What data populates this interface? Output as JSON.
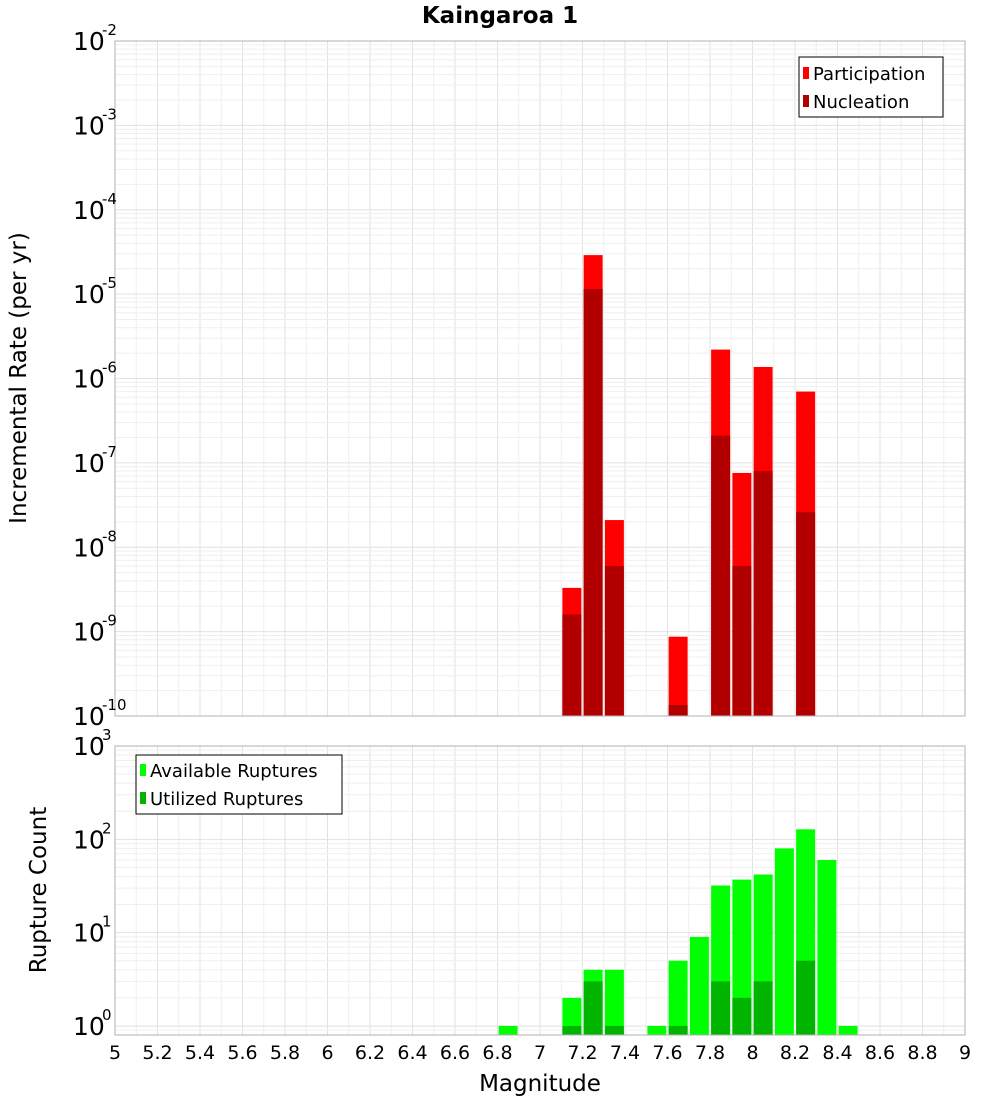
{
  "chart_data": [
    {
      "type": "bar",
      "title": "Kaingaroa 1",
      "xlabel": "",
      "ylabel": "Incremental Rate (per yr)",
      "yscale": "log",
      "ylim": [
        1e-10,
        0.01
      ],
      "xlim": [
        5,
        9
      ],
      "grid": true,
      "legend_placement": "top-right",
      "y_ticks": [
        {
          "base": "10",
          "exp": "-10",
          "value": 1e-10
        },
        {
          "base": "10",
          "exp": "-9",
          "value": 1e-09
        },
        {
          "base": "10",
          "exp": "-8",
          "value": 1e-08
        },
        {
          "base": "10",
          "exp": "-7",
          "value": 1e-07
        },
        {
          "base": "10",
          "exp": "-6",
          "value": 1e-06
        },
        {
          "base": "10",
          "exp": "-5",
          "value": 1e-05
        },
        {
          "base": "10",
          "exp": "-4",
          "value": 0.0001
        },
        {
          "base": "10",
          "exp": "-3",
          "value": 0.001
        },
        {
          "base": "10",
          "exp": "-2",
          "value": 0.01
        }
      ],
      "x": [
        7.15,
        7.25,
        7.35,
        7.65,
        7.85,
        7.95,
        8.05,
        8.25
      ],
      "series": [
        {
          "name": "Participation",
          "color": "#ff0000",
          "values": [
            3.3e-09,
            2.9e-05,
            2.1e-08,
            8.7e-10,
            2.2e-06,
            7.6e-08,
            1.37e-06,
            7e-07
          ]
        },
        {
          "name": "Nucleation",
          "color": "#b20000",
          "values": [
            1.6e-09,
            1.15e-05,
            6e-09,
            1.35e-10,
            2.1e-07,
            6e-09,
            8e-08,
            2.6e-08
          ]
        }
      ]
    },
    {
      "type": "bar",
      "title": "",
      "xlabel": "Magnitude",
      "ylabel": "Rupture Count",
      "yscale": "log",
      "ylim": [
        0.8,
        1000
      ],
      "xlim": [
        5,
        9
      ],
      "grid": true,
      "legend_placement": "top-left",
      "x_ticks": [
        "5",
        "5.2",
        "5.4",
        "5.6",
        "5.8",
        "6",
        "6.2",
        "6.4",
        "6.6",
        "6.8",
        "7",
        "7.2",
        "7.4",
        "7.6",
        "7.8",
        "8",
        "8.2",
        "8.4",
        "8.6",
        "8.8",
        "9"
      ],
      "y_ticks": [
        {
          "base": "10",
          "exp": "0",
          "value": 1
        },
        {
          "base": "10",
          "exp": "1",
          "value": 10
        },
        {
          "base": "10",
          "exp": "2",
          "value": 100
        },
        {
          "base": "10",
          "exp": "3",
          "value": 1000
        }
      ],
      "series": [
        {
          "name": "Available Ruptures",
          "color": "#00ff00",
          "x": [
            6.85,
            7.15,
            7.25,
            7.35,
            7.55,
            7.65,
            7.75,
            7.85,
            7.95,
            8.05,
            8.15,
            8.25,
            8.35,
            8.45
          ],
          "values": [
            1,
            2,
            4,
            4,
            1,
            5,
            9,
            32,
            37,
            42,
            80,
            128,
            60,
            1
          ]
        },
        {
          "name": "Utilized Ruptures",
          "color": "#00b400",
          "x": [
            7.15,
            7.25,
            7.35,
            7.65,
            7.85,
            7.95,
            8.05,
            8.25
          ],
          "values": [
            1,
            3,
            1,
            1,
            3,
            2,
            3,
            5
          ]
        }
      ]
    }
  ]
}
